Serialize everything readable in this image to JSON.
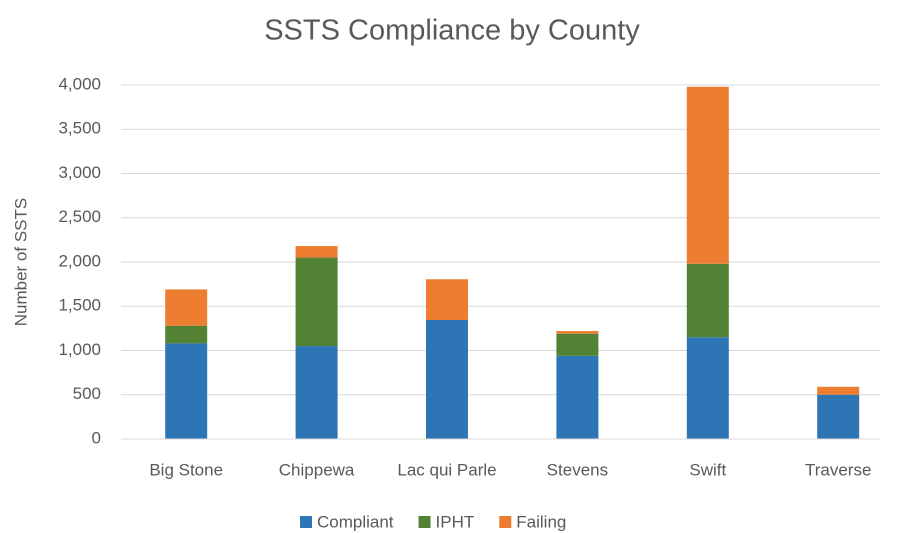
{
  "chart_data": {
    "type": "stacked_bar",
    "title": "SSTS Compliance by County",
    "y_label": "Number of SSTS",
    "categories": [
      "Big Stone",
      "Chippewa",
      "Lac qui Parle",
      "Stevens",
      "Swift",
      "Traverse"
    ],
    "series": [
      {
        "name": "Compliant",
        "color": "#2e75b6",
        "values": [
          1080,
          1050,
          1345,
          940,
          1150,
          500
        ]
      },
      {
        "name": "IPHT",
        "color": "#548235",
        "values": [
          200,
          1000,
          0,
          250,
          830,
          0
        ]
      },
      {
        "name": "Failing",
        "color": "#ed7d31",
        "values": [
          410,
          130,
          460,
          30,
          2000,
          90
        ]
      }
    ],
    "ylim": [
      0,
      4000
    ],
    "yticks": [
      0,
      500,
      {
        "value": 1000,
        "label": "1,000"
      },
      {
        "value": 1500,
        "label": "1,500"
      },
      {
        "value": 2000,
        "label": "2,000"
      },
      {
        "value": 2500,
        "label": "2,500"
      },
      {
        "value": 3000,
        "label": "3,000"
      },
      {
        "value": 3500,
        "label": "3,500"
      },
      {
        "value": 4000,
        "label": "4,000"
      }
    ],
    "grid": true,
    "legend": "bottom"
  }
}
